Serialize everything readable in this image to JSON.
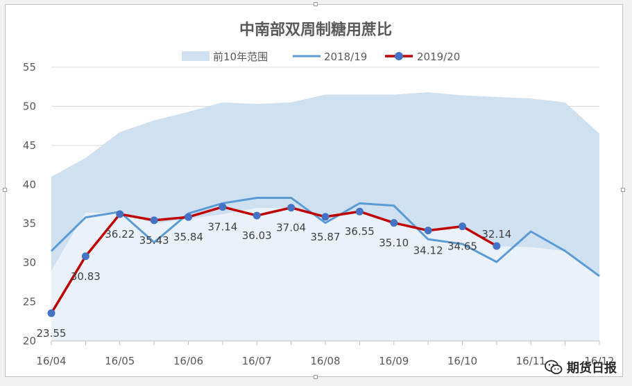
{
  "chart_data": {
    "type": "line",
    "title": "中南部双周制糖用蔗比",
    "xlabel": "",
    "ylabel": "",
    "ylim": [
      20,
      55
    ],
    "yticks": [
      20,
      25,
      30,
      35,
      40,
      45,
      50,
      55
    ],
    "x_tick_labels": [
      "16/04",
      "16/05",
      "16/06",
      "16/07",
      "16/08",
      "16/09",
      "16/10",
      "16/11",
      "16/12"
    ],
    "legend_position": "top",
    "grid": true,
    "range_band": {
      "name": "前10年范围",
      "color": "#cfe0f1",
      "lower": [
        29.0,
        36.4,
        36.4,
        35.0,
        35.6,
        36.2,
        37.0,
        37.0,
        35.9,
        36.5,
        35.2,
        34.1,
        34.6,
        32.1,
        32.0,
        31.5,
        28.5
      ],
      "upper": [
        41.0,
        43.4,
        46.7,
        48.2,
        49.3,
        50.5,
        50.3,
        50.5,
        51.5,
        51.5,
        51.5,
        51.8,
        51.4,
        51.2,
        51.0,
        50.5,
        46.5
      ]
    },
    "series": [
      {
        "name": "2018/19",
        "color": "#5b9bd5",
        "values": [
          31.5,
          35.8,
          36.5,
          32.6,
          36.3,
          37.6,
          38.3,
          38.3,
          35.1,
          37.6,
          37.3,
          33.0,
          32.4,
          30.1,
          34.0,
          31.5,
          28.3
        ]
      },
      {
        "name": "2019/20",
        "color": "#c00000",
        "values": [
          23.55,
          30.83,
          36.22,
          35.43,
          35.84,
          37.14,
          36.03,
          37.04,
          35.87,
          36.55,
          35.1,
          34.12,
          34.65,
          32.14
        ],
        "labels": [
          "23.55",
          "30.83",
          "36.22",
          "35.43",
          "35.84",
          "37.14",
          "36.03",
          "37.04",
          "35.87",
          "36.55",
          "35.10",
          "34.12",
          "34.65",
          "32.14"
        ]
      }
    ]
  },
  "watermark": {
    "text": "期货日报",
    "icon": "wechat-icon"
  }
}
